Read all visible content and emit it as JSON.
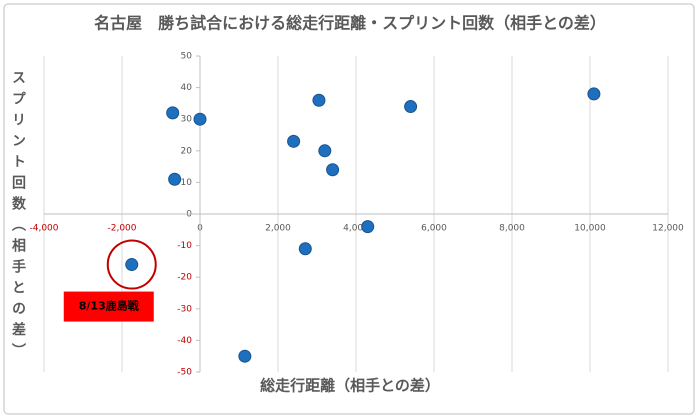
{
  "chart_data": {
    "type": "scatter",
    "title": "名古屋　勝ち試合における総走行距離・スプリント回数（相手との差）",
    "x_label": "総走行距離（相手との差）",
    "y_label": "スプリント回数（相手との差）",
    "series": [
      {
        "color": "#1f6fbf",
        "x": [
          -700,
          0,
          -650,
          3050,
          2400,
          3200,
          3400,
          5400,
          10100,
          4300,
          2700,
          1150,
          -1750
        ],
        "values": [
          32,
          30,
          11,
          36,
          23,
          20,
          14,
          34,
          38,
          -4,
          -11,
          -45,
          -16
        ]
      }
    ],
    "xlim": [
      -4000,
      12000
    ],
    "xticks": [
      {
        "value": -4000,
        "label": "-4,000"
      },
      {
        "value": -2000,
        "label": "-2,000"
      },
      0,
      {
        "value": 2000,
        "label": "2,000"
      },
      {
        "value": 4000,
        "label": "4,000"
      },
      {
        "value": 6000,
        "label": "6,000"
      },
      {
        "value": 8000,
        "label": "8,000"
      },
      {
        "value": 10000,
        "label": "10,000"
      },
      {
        "value": 12000,
        "label": "12,000"
      }
    ],
    "ylim": [
      -50,
      50
    ],
    "yticks": [
      -50,
      -40,
      -30,
      -20,
      -10,
      0,
      10,
      20,
      30,
      40,
      50
    ],
    "grid": "x",
    "negative_tick_color": "#c00000",
    "annotation": "8/13鹿島戦"
  }
}
